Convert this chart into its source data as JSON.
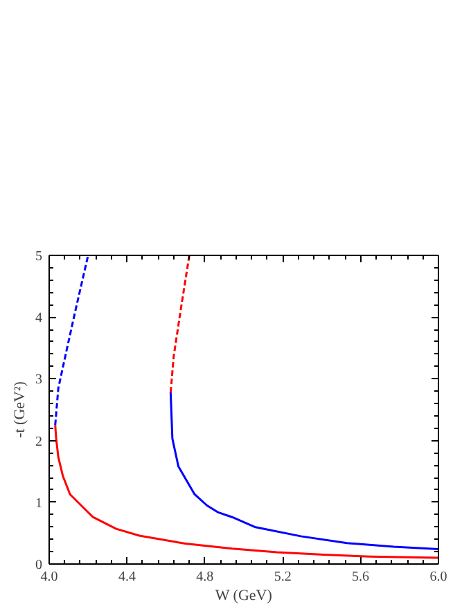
{
  "chart_data": {
    "type": "line",
    "xlabel": "W (GeV)",
    "ylabel": "-t (GeV²)",
    "xlim": [
      4.0,
      6.0
    ],
    "ylim": [
      0,
      5
    ],
    "xticks": [
      {
        "value": 4.0,
        "label": "4.0"
      },
      {
        "value": 4.4,
        "label": "4.4"
      },
      {
        "value": 4.8,
        "label": "4.8"
      },
      {
        "value": 5.2,
        "label": "5.2"
      },
      {
        "value": 5.6,
        "label": "5.6"
      },
      {
        "value": 6.0,
        "label": "6.0"
      }
    ],
    "yticks": [
      0,
      1,
      2,
      3,
      4,
      5
    ],
    "grid": false,
    "marker": "none",
    "series": [
      {
        "color": "#ff0000",
        "line_style": "solid",
        "x": [
          4.031,
          4.036,
          4.047,
          4.07,
          4.107,
          4.225,
          4.344,
          4.463,
          4.7,
          4.94,
          5.17,
          5.41,
          5.65,
          6.0
        ],
        "values": [
          2.25,
          2.03,
          1.73,
          1.43,
          1.13,
          0.76,
          0.57,
          0.46,
          0.33,
          0.25,
          0.19,
          0.15,
          0.12,
          0.1
        ]
      },
      {
        "color": "#0000ff",
        "line_style": "dashed",
        "x": [
          4.031,
          4.047,
          4.083,
          4.13,
          4.2
        ],
        "values": [
          2.25,
          2.85,
          3.37,
          4.04,
          5.0
        ]
      },
      {
        "color": "#0000ff",
        "line_style": "solid",
        "x": [
          4.624,
          4.633,
          4.664,
          4.747,
          4.81,
          4.866,
          4.94,
          5.056,
          5.293,
          5.53,
          5.77,
          6.0
        ],
        "values": [
          2.78,
          2.03,
          1.58,
          1.13,
          0.95,
          0.84,
          0.76,
          0.6,
          0.45,
          0.34,
          0.28,
          0.24
        ]
      },
      {
        "color": "#ff0000",
        "line_style": "dashed",
        "x": [
          4.624,
          4.64,
          4.676,
          4.72
        ],
        "values": [
          2.78,
          3.37,
          4.12,
          5.0
        ]
      }
    ]
  }
}
